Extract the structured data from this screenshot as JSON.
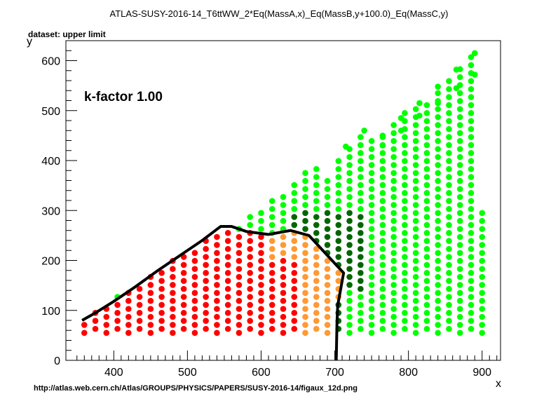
{
  "chart_data": {
    "type": "scatter",
    "title": "ATLAS-SUSY-2016-14_T6ttWW_2*Eq(MassA,x)_Eq(MassB,y+100.0)_Eq(MassC,y)",
    "subtitle": "dataset: upper limit",
    "annotation": "k-factor 1.00",
    "footer": "http://atlas.web.cern.ch/Atlas/GROUPS/PHYSICS/PAPERS/SUSY-2016-14/figaux_12d.png",
    "xlabel": "x",
    "ylabel": "y",
    "xlim": [
      335,
      925
    ],
    "ylim": [
      0,
      640
    ],
    "xticks": [
      400,
      500,
      600,
      700,
      800,
      900
    ],
    "yticks": [
      0,
      100,
      200,
      300,
      400,
      500,
      600
    ],
    "grid": false,
    "colors": {
      "excluded": "#ff0000",
      "borderline_excluded": "#ff9933",
      "borderline_allowed": "#006600",
      "allowed": "#00ff00",
      "contour": "#000000"
    },
    "exclusion_contour": [
      [
        357,
        80
      ],
      [
        375,
        95
      ],
      [
        400,
        118
      ],
      [
        430,
        148
      ],
      [
        460,
        180
      ],
      [
        490,
        210
      ],
      [
        520,
        240
      ],
      [
        545,
        268
      ],
      [
        560,
        268
      ],
      [
        580,
        258
      ],
      [
        610,
        252
      ],
      [
        640,
        260
      ],
      [
        665,
        250
      ],
      [
        690,
        210
      ],
      [
        712,
        175
      ],
      [
        704,
        110
      ],
      [
        703,
        75
      ],
      [
        702,
        0
      ]
    ],
    "dot_grid": {
      "x_min": 360,
      "x_max": 900,
      "x_step": 15,
      "y_min": 55,
      "y_step": 16,
      "upper_edge": [
        [
          360,
          85
        ],
        [
          545,
          265
        ],
        [
          560,
          272
        ],
        [
          590,
          290
        ],
        [
          650,
          365
        ],
        [
          680,
          395
        ],
        [
          690,
          370
        ],
        [
          715,
          425
        ],
        [
          740,
          455
        ],
        [
          765,
          450
        ],
        [
          790,
          495
        ],
        [
          815,
          510
        ],
        [
          840,
          545
        ],
        [
          865,
          580
        ],
        [
          890,
          615
        ],
        [
          900,
          300
        ]
      ]
    }
  }
}
